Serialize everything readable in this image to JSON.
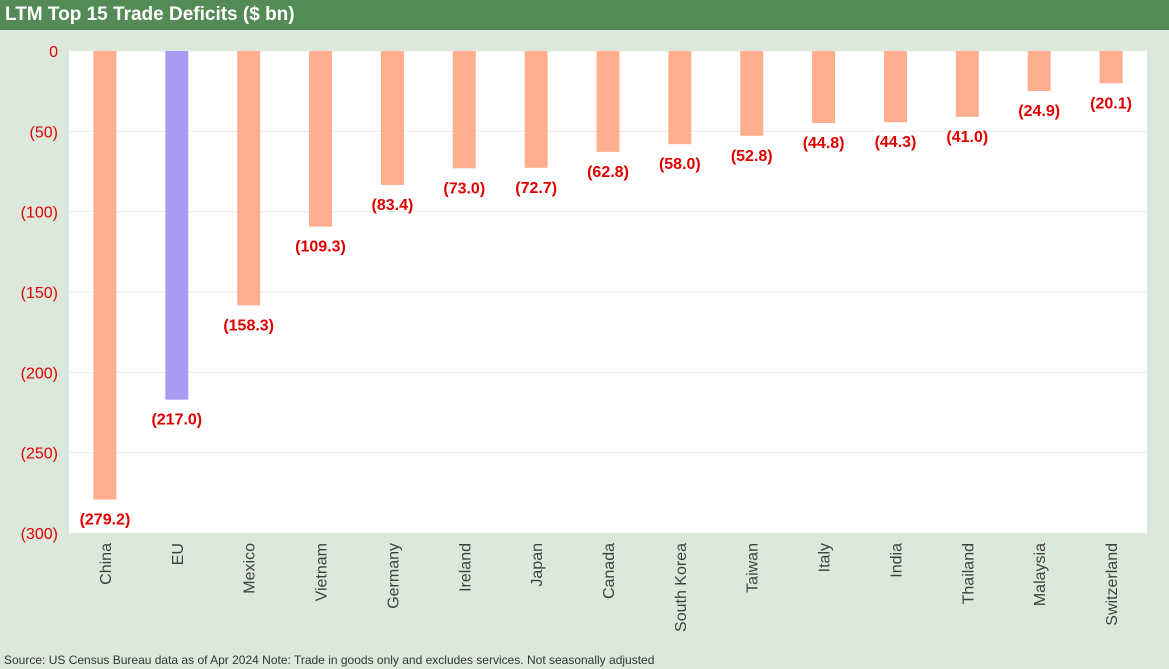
{
  "title": "LTM Top 15 Trade Deficits ($ bn)",
  "source_note": "Source: US Census Bureau data as of Apr 2024 Note: Trade in goods only and excludes services. Not seasonally adjusted",
  "colors": {
    "title_bar": "#548a56",
    "background": "#dce8dc",
    "plot_area": "#ffffff",
    "bar_default": "#ffae8f",
    "bar_highlight": "#a99cf2",
    "data_label": "#e00000",
    "axis_label": "#e00000",
    "category_label": "#404040"
  },
  "chart_data": {
    "type": "bar",
    "title": "LTM Top 15 Trade Deficits ($ bn)",
    "categories": [
      "China",
      "EU",
      "Mexico",
      "Vietnam",
      "Germany",
      "Ireland",
      "Japan",
      "Canada",
      "South Korea",
      "Taiwan",
      "Italy",
      "India",
      "Thailand",
      "Malaysia",
      "Switzerland"
    ],
    "values": [
      -279.2,
      -217.0,
      -158.3,
      -109.3,
      -83.4,
      -73.0,
      -72.7,
      -62.8,
      -58.0,
      -52.8,
      -44.8,
      -44.3,
      -41.0,
      -24.9,
      -20.1
    ],
    "data_labels": [
      "(279.2)",
      "(217.0)",
      "(158.3)",
      "(109.3)",
      "(83.4)",
      "(73.0)",
      "(72.7)",
      "(62.8)",
      "(58.0)",
      "(52.8)",
      "(44.8)",
      "(44.3)",
      "(41.0)",
      "(24.9)",
      "(20.1)"
    ],
    "highlight_category": "EU",
    "ylim": [
      -300,
      0
    ],
    "yticks": [
      0,
      -50,
      -100,
      -150,
      -200,
      -250,
      -300
    ],
    "ytick_labels": [
      "0",
      "(50)",
      "(100)",
      "(150)",
      "(200)",
      "(250)",
      "(300)"
    ],
    "xlabel": "",
    "ylabel": "",
    "grid": true,
    "legend": "none"
  }
}
